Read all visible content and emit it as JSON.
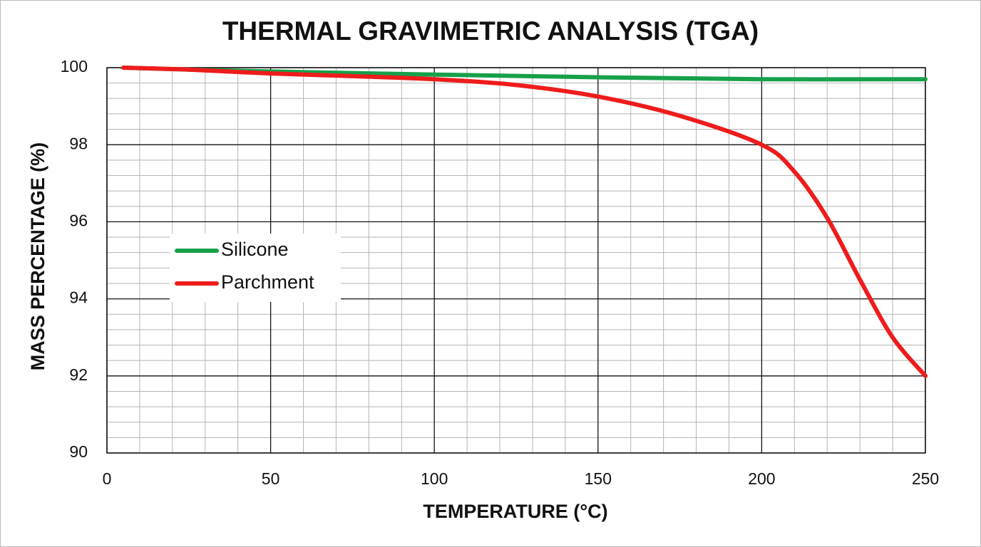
{
  "chart_data": {
    "type": "line",
    "title": "THERMAL GRAVIMETRIC ANALYSIS (TGA)",
    "xlabel": "TEMPERATURE (°C)",
    "ylabel": "MASS PERCENTAGE (%)",
    "xlim": [
      0,
      250
    ],
    "xticks": [
      0,
      50,
      100,
      150,
      200,
      250
    ],
    "ylim": [
      90,
      100
    ],
    "yticks": [
      90,
      92,
      94,
      96,
      98,
      100
    ],
    "grid": true,
    "legend": "center left",
    "series": [
      {
        "name": "Silicone",
        "color": "#17a04a",
        "x": [
          5,
          25,
          50,
          100,
          150,
          200,
          250
        ],
        "values": [
          100,
          99.95,
          99.9,
          99.82,
          99.75,
          99.7,
          99.7
        ]
      },
      {
        "name": "Parchment",
        "color": "#ee1c1c",
        "x": [
          5,
          25,
          50,
          75,
          100,
          125,
          150,
          175,
          200,
          210,
          220,
          230,
          240,
          250
        ],
        "values": [
          100,
          99.95,
          99.85,
          99.78,
          99.7,
          99.55,
          99.25,
          98.75,
          98.0,
          97.3,
          96.1,
          94.5,
          93.0,
          92.0
        ]
      }
    ]
  }
}
